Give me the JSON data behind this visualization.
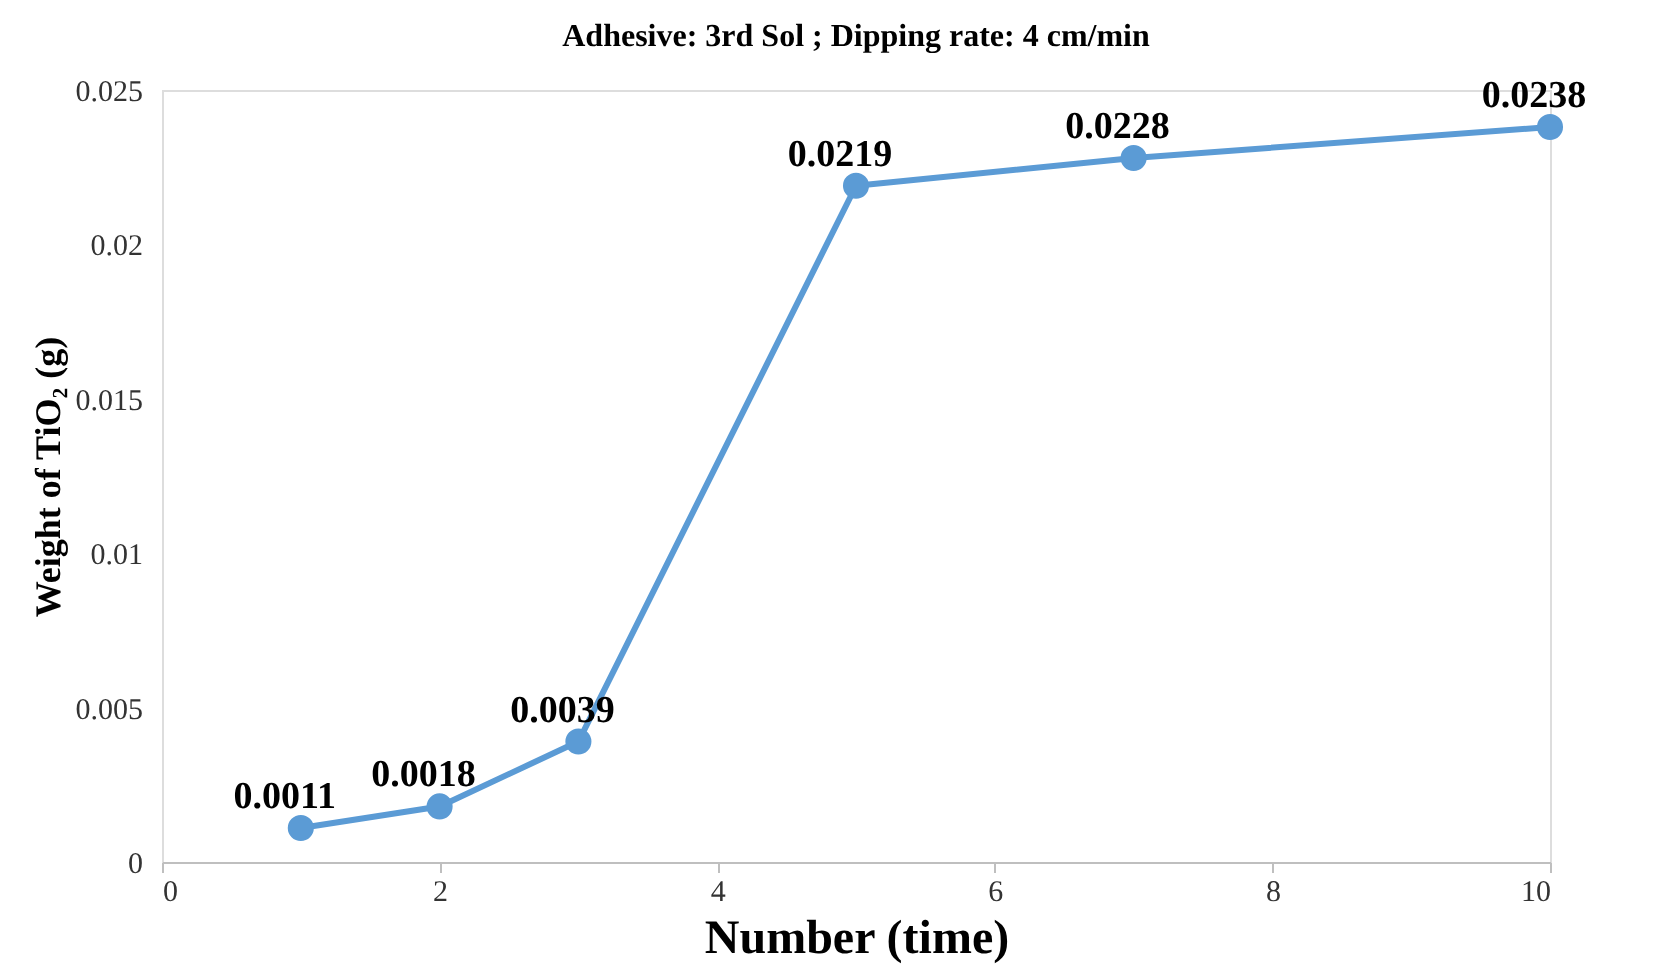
{
  "chart_data": {
    "type": "line",
    "title": "Adhesive: 3rd Sol ; Dipping rate: 4 cm/min",
    "xlabel": "Number (time)",
    "ylabel": "Weight of TiO₂ (g)",
    "x": [
      1,
      2,
      3,
      5,
      7,
      10
    ],
    "series": [
      {
        "color": "#5b9bd5",
        "values": [
          0.0011,
          0.0018,
          0.0039,
          0.0219,
          0.0228,
          0.0238
        ]
      }
    ],
    "xlim": [
      0,
      10
    ],
    "xticks": [
      0,
      2,
      4,
      6,
      8,
      10
    ],
    "ylim": [
      0,
      0.025
    ],
    "yticks": [
      0,
      0.005,
      0.01,
      0.015,
      0.02,
      0.025
    ],
    "grid": false,
    "marker": "circle",
    "line_style": "solid",
    "data_labels": true
  }
}
